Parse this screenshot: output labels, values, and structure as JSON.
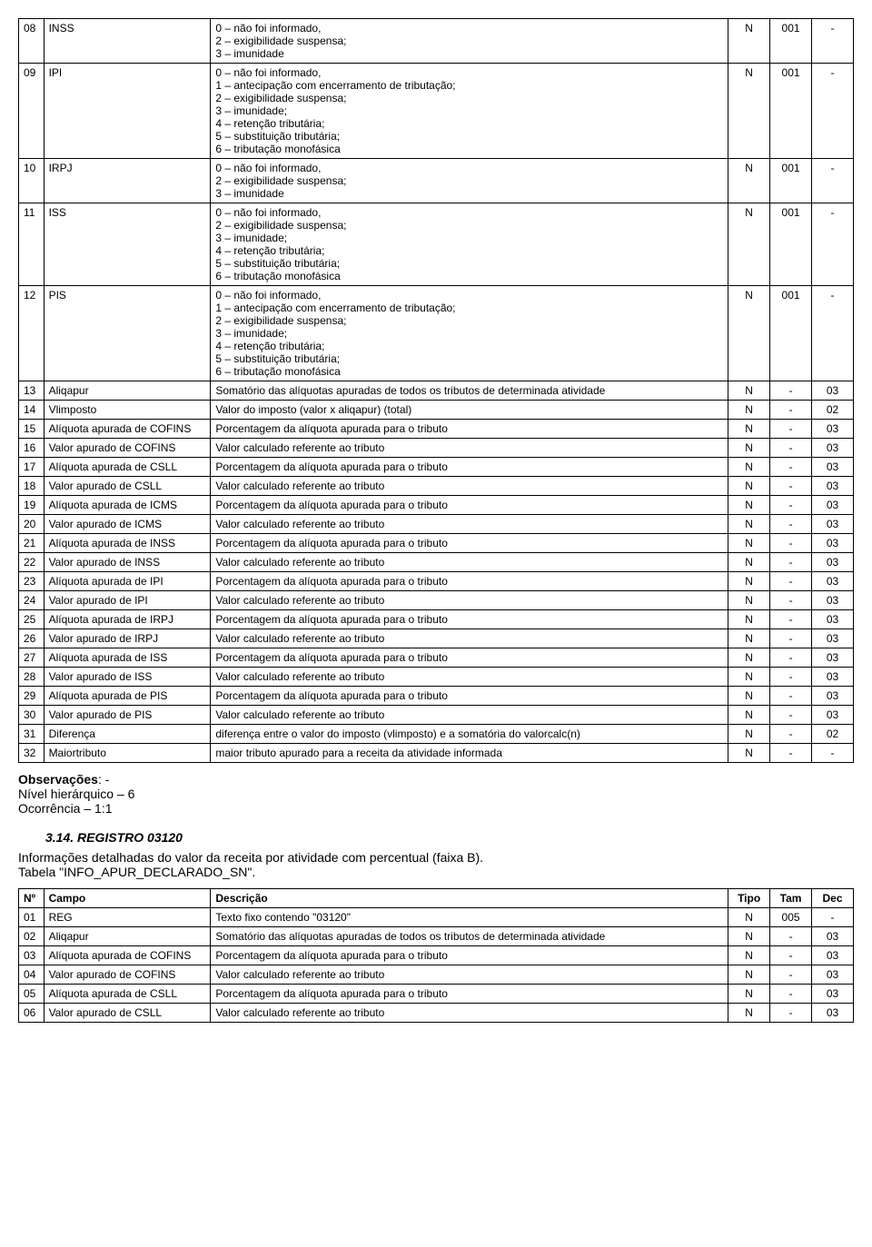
{
  "table1": {
    "rows": [
      {
        "n": "08",
        "f": "INSS",
        "d": "0 – não foi informado,\n2 – exigibilidade suspensa;\n3 – imunidade",
        "t": "N",
        "tam": "001",
        "dec": "-"
      },
      {
        "n": "09",
        "f": "IPI",
        "d": "0 – não foi informado,\n1 – antecipação com encerramento de tributação;\n2 – exigibilidade suspensa;\n3 – imunidade;\n4 – retenção tributária;\n5 – substituição tributária;\n6 – tributação monofásica",
        "t": "N",
        "tam": "001",
        "dec": "-"
      },
      {
        "n": "10",
        "f": "IRPJ",
        "d": "0 – não foi informado,\n2 – exigibilidade suspensa;\n3 – imunidade",
        "t": "N",
        "tam": "001",
        "dec": "-"
      },
      {
        "n": "11",
        "f": "ISS",
        "d": "0 – não foi informado,\n2 – exigibilidade suspensa;\n3 – imunidade;\n4 – retenção tributária;\n5 – substituição tributária;\n6 – tributação monofásica",
        "t": "N",
        "tam": "001",
        "dec": "-"
      },
      {
        "n": "12",
        "f": "PIS",
        "d": "0 – não foi informado,\n1 – antecipação com encerramento de tributação;\n2 – exigibilidade suspensa;\n3 – imunidade;\n4 – retenção tributária;\n5 – substituição tributária;\n6 – tributação monofásica",
        "t": "N",
        "tam": "001",
        "dec": "-"
      },
      {
        "n": "13",
        "f": "Aliqapur",
        "d": "Somatório das alíquotas apuradas de todos os tributos de determinada atividade",
        "t": "N",
        "tam": "-",
        "dec": "03"
      },
      {
        "n": "14",
        "f": "Vlimposto",
        "d": "Valor do imposto (valor x aliqapur) (total)",
        "t": "N",
        "tam": "-",
        "dec": "02"
      },
      {
        "n": "15",
        "f": "Alíquota apurada de COFINS",
        "d": "Porcentagem da alíquota apurada para o tributo",
        "t": "N",
        "tam": "-",
        "dec": "03"
      },
      {
        "n": "16",
        "f": "Valor apurado de COFINS",
        "d": "Valor calculado referente ao tributo",
        "t": "N",
        "tam": "-",
        "dec": "03"
      },
      {
        "n": "17",
        "f": "Alíquota apurada de CSLL",
        "d": "Porcentagem da alíquota apurada para o tributo",
        "t": "N",
        "tam": "-",
        "dec": "03"
      },
      {
        "n": "18",
        "f": "Valor apurado de CSLL",
        "d": "Valor calculado referente ao tributo",
        "t": "N",
        "tam": "-",
        "dec": "03"
      },
      {
        "n": "19",
        "f": "Alíquota apurada de ICMS",
        "d": "Porcentagem da alíquota apurada para o tributo",
        "t": "N",
        "tam": "-",
        "dec": "03"
      },
      {
        "n": "20",
        "f": "Valor apurado de ICMS",
        "d": "Valor calculado referente ao tributo",
        "t": "N",
        "tam": "-",
        "dec": "03"
      },
      {
        "n": "21",
        "f": "Alíquota apurada de INSS",
        "d": "Porcentagem da alíquota apurada para o tributo",
        "t": "N",
        "tam": "-",
        "dec": "03"
      },
      {
        "n": "22",
        "f": "Valor apurado de INSS",
        "d": "Valor calculado referente ao tributo",
        "t": "N",
        "tam": "-",
        "dec": "03"
      },
      {
        "n": "23",
        "f": "Alíquota apurada de IPI",
        "d": "Porcentagem da alíquota apurada para o tributo",
        "t": "N",
        "tam": "-",
        "dec": "03"
      },
      {
        "n": "24",
        "f": "Valor apurado de IPI",
        "d": "Valor calculado referente ao tributo",
        "t": "N",
        "tam": "-",
        "dec": "03"
      },
      {
        "n": "25",
        "f": "Alíquota apurada de IRPJ",
        "d": "Porcentagem da alíquota apurada para o tributo",
        "t": "N",
        "tam": "-",
        "dec": "03"
      },
      {
        "n": "26",
        "f": "Valor apurado de IRPJ",
        "d": "Valor calculado referente ao tributo",
        "t": "N",
        "tam": "-",
        "dec": "03"
      },
      {
        "n": "27",
        "f": "Alíquota apurada de ISS",
        "d": "Porcentagem da alíquota apurada para o tributo",
        "t": "N",
        "tam": "-",
        "dec": "03"
      },
      {
        "n": "28",
        "f": "Valor apurado de ISS",
        "d": "Valor calculado referente ao tributo",
        "t": "N",
        "tam": "-",
        "dec": "03"
      },
      {
        "n": "29",
        "f": "Alíquota apurada de PIS",
        "d": "Porcentagem da alíquota apurada para o tributo",
        "t": "N",
        "tam": "-",
        "dec": "03"
      },
      {
        "n": "30",
        "f": "Valor apurado de PIS",
        "d": "Valor calculado referente ao tributo",
        "t": "N",
        "tam": "-",
        "dec": "03"
      },
      {
        "n": "31",
        "f": "Diferença",
        "d": "diferença entre o valor do imposto (vlimposto) e a somatória do valorcalc(n)",
        "t": "N",
        "tam": "-",
        "dec": "02"
      },
      {
        "n": "32",
        "f": "Maiortributo",
        "d": "maior tributo apurado para a receita da atividade informada",
        "t": "N",
        "tam": "-",
        "dec": "-"
      }
    ]
  },
  "obs": {
    "line1_bold": "Observações",
    "line1_rest": ": -",
    "line2": "Nível hierárquico – 6",
    "line3": "Ocorrência – 1:1"
  },
  "section": {
    "title": "3.14. REGISTRO 03120",
    "para": "Informações detalhadas do valor da receita por atividade com percentual (faixa B).\nTabela \"INFO_APUR_DECLARADO_SN\"."
  },
  "table2": {
    "headers": {
      "n": "Nº",
      "f": "Campo",
      "d": "Descrição",
      "t": "Tipo",
      "tam": "Tam",
      "dec": "Dec"
    },
    "rows": [
      {
        "n": "01",
        "f": "REG",
        "d": "Texto fixo contendo \"03120\"",
        "t": "N",
        "tam": "005",
        "dec": "-"
      },
      {
        "n": "02",
        "f": "Aliqapur",
        "d": "Somatório das alíquotas apuradas de todos os tributos de determinada atividade",
        "t": "N",
        "tam": "-",
        "dec": "03"
      },
      {
        "n": "03",
        "f": "Alíquota apurada de COFINS",
        "d": "Porcentagem da alíquota apurada para o tributo",
        "t": "N",
        "tam": "-",
        "dec": "03"
      },
      {
        "n": "04",
        "f": "Valor apurado de COFINS",
        "d": "Valor calculado referente ao tributo",
        "t": "N",
        "tam": "-",
        "dec": "03"
      },
      {
        "n": "05",
        "f": "Alíquota apurada de CSLL",
        "d": "Porcentagem da alíquota apurada para o tributo",
        "t": "N",
        "tam": "-",
        "dec": "03"
      },
      {
        "n": "06",
        "f": "Valor apurado de CSLL",
        "d": "Valor calculado referente ao tributo",
        "t": "N",
        "tam": "-",
        "dec": "03"
      }
    ]
  }
}
